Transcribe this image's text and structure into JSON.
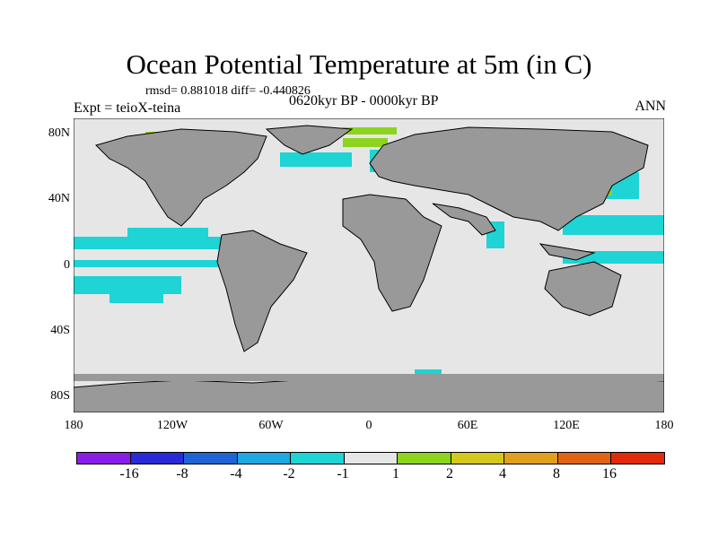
{
  "title": "Ocean Potential Temperature at 5m (in C)",
  "stats": "rmsd= 0.881018 diff= -0.440826",
  "experiment": "Expt = teioX-teina",
  "period": "0620kyr BP - 0000kyr BP",
  "season": "ANN",
  "lat_labels": [
    "80N",
    "40N",
    "0",
    "40S",
    "80S"
  ],
  "lon_labels": [
    "180",
    "120W",
    "60W",
    "0",
    "60E",
    "120E",
    "180"
  ],
  "colorbar": {
    "colors": [
      "#8a1ee6",
      "#2a2ad6",
      "#1e64d4",
      "#1ea8e0",
      "#1ed4d4",
      "#e6e6e6",
      "#8cd41e",
      "#d4c81e",
      "#e0a01e",
      "#e06414",
      "#e02c0a"
    ],
    "labels": [
      "-16",
      "-8",
      "-4",
      "-2",
      "-1",
      "1",
      "2",
      "4",
      "8",
      "16"
    ]
  },
  "palette": {
    "ocean": "#e6e6e6",
    "land": "#999999",
    "cool": "#1ed4d4",
    "cooler": "#1ea8e0",
    "warm": "#8cd41e"
  }
}
